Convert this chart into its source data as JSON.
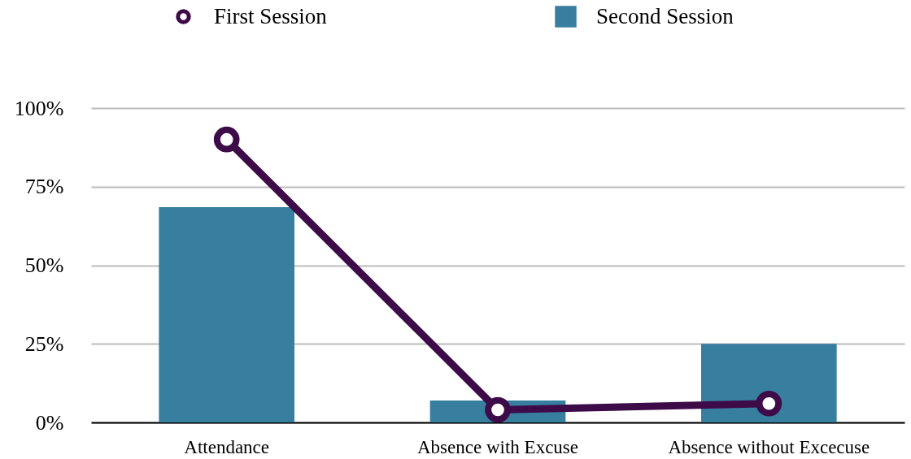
{
  "chart_data": {
    "type": "bar",
    "categories": [
      "Attendance",
      "Absence with Excuse",
      "Absence without Excecuse"
    ],
    "series": [
      {
        "name": "First Session",
        "type": "line",
        "color": "#3d0b48",
        "values": [
          90,
          4,
          6
        ]
      },
      {
        "name": "Second Session",
        "color": "#377e9f",
        "values": [
          68.5,
          7,
          25
        ]
      }
    ],
    "ylim": [
      0,
      100
    ],
    "yticks": [
      {
        "value": 0,
        "label": "0%"
      },
      {
        "value": 25,
        "label": "25%"
      },
      {
        "value": 50,
        "label": "50%"
      },
      {
        "value": 75,
        "label": "75%"
      },
      {
        "value": 100,
        "label": "100%"
      }
    ],
    "grid": "y",
    "legend": "top",
    "marker": "circle",
    "line_style": "solid"
  }
}
